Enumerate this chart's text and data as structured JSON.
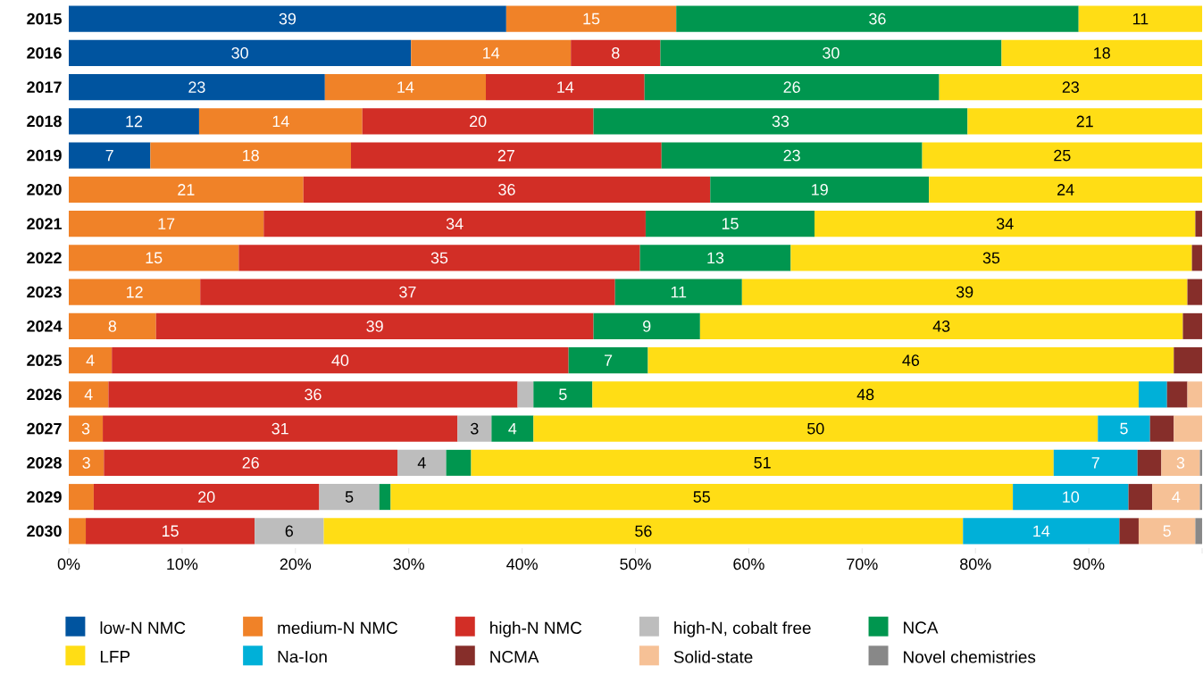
{
  "chart_data": {
    "type": "bar",
    "orientation": "horizontal",
    "stacked": true,
    "categories": [
      "2015",
      "2016",
      "2017",
      "2018",
      "2019",
      "2020",
      "2021",
      "2022",
      "2023",
      "2024",
      "2025",
      "2026",
      "2027",
      "2028",
      "2029",
      "2030"
    ],
    "series": [
      {
        "name": "low-N NMC",
        "color": "#00549f",
        "values": [
          38.6,
          30.2,
          22.6,
          11.5,
          7.2,
          null,
          null,
          null,
          null,
          null,
          null,
          null,
          null,
          null,
          null,
          null
        ],
        "value_labels": [
          "39",
          "30",
          "23",
          "12",
          "7",
          null,
          null,
          null,
          null,
          null,
          null,
          null,
          null,
          null,
          null,
          null
        ]
      },
      {
        "name": "medium-N NMC",
        "color": "#f08228",
        "values": [
          15.0,
          14.1,
          14.2,
          14.4,
          17.7,
          20.7,
          17.2,
          15.0,
          11.6,
          7.7,
          3.8,
          3.5,
          3.0,
          3.1,
          2.2,
          1.5
        ],
        "value_labels": [
          "15",
          "14",
          "14",
          "14",
          "18",
          "21",
          "17",
          "15",
          "12",
          "8",
          "4",
          "4",
          "3",
          "3",
          null,
          null
        ]
      },
      {
        "name": "high-N NMC",
        "color": "#d22e26",
        "values": [
          null,
          7.9,
          14.0,
          20.4,
          27.4,
          35.9,
          33.7,
          35.4,
          36.6,
          38.6,
          40.3,
          36.1,
          31.3,
          25.9,
          19.9,
          14.9
        ],
        "value_labels": [
          null,
          "8",
          "14",
          "20",
          "27",
          "36",
          "34",
          "35",
          "37",
          "39",
          "40",
          "36",
          "31",
          "26",
          "20",
          "15"
        ]
      },
      {
        "name": "high-N, cobalt free",
        "color": "#bdbdbd",
        "values": [
          null,
          null,
          null,
          null,
          null,
          null,
          null,
          null,
          null,
          null,
          null,
          1.4,
          3.0,
          4.3,
          5.3,
          6.1
        ],
        "value_labels": [
          null,
          null,
          null,
          null,
          null,
          null,
          null,
          null,
          null,
          null,
          null,
          null,
          "3",
          "4",
          "5",
          "6"
        ]
      },
      {
        "name": "NCA",
        "color": "#00964f",
        "values": [
          35.5,
          30.1,
          26.0,
          33.0,
          23.0,
          19.3,
          14.9,
          13.3,
          11.2,
          9.4,
          7.0,
          5.2,
          3.7,
          2.2,
          1.0,
          null
        ],
        "value_labels": [
          "36",
          "30",
          "26",
          "33",
          "23",
          "19",
          "15",
          "13",
          "11",
          "9",
          "7",
          "5",
          "4",
          null,
          null,
          null
        ]
      },
      {
        "name": "LFP",
        "color": "#ffdd15",
        "values": [
          10.9,
          17.7,
          23.2,
          20.7,
          24.7,
          24.1,
          33.6,
          35.4,
          39.3,
          42.6,
          46.4,
          48.2,
          49.8,
          51.4,
          54.9,
          56.4
        ],
        "value_labels": [
          "11",
          "18",
          "23",
          "21",
          "25",
          "24",
          "34",
          "35",
          "39",
          "43",
          "46",
          "48",
          "50",
          "51",
          "55",
          "56"
        ]
      },
      {
        "name": "Na-Ion",
        "color": "#00b0d8",
        "values": [
          null,
          null,
          null,
          null,
          null,
          null,
          null,
          null,
          null,
          null,
          null,
          2.5,
          4.6,
          7.4,
          10.2,
          13.8
        ],
        "value_labels": [
          null,
          null,
          null,
          null,
          null,
          null,
          null,
          null,
          null,
          null,
          null,
          null,
          "5",
          "7",
          "10",
          "14"
        ]
      },
      {
        "name": "NCMA",
        "color": "#862e2a",
        "values": [
          null,
          null,
          null,
          null,
          null,
          null,
          0.6,
          0.9,
          1.3,
          1.7,
          2.5,
          1.8,
          2.1,
          2.1,
          2.1,
          1.7
        ],
        "value_labels": [
          null,
          null,
          null,
          null,
          null,
          null,
          null,
          null,
          null,
          null,
          null,
          null,
          null,
          null,
          null,
          null
        ]
      },
      {
        "name": "Solid-state",
        "color": "#f6c196",
        "values": [
          null,
          null,
          null,
          null,
          null,
          null,
          null,
          null,
          null,
          null,
          null,
          1.3,
          2.5,
          3.4,
          4.2,
          5.0
        ],
        "value_labels": [
          null,
          null,
          null,
          null,
          null,
          null,
          null,
          null,
          null,
          null,
          null,
          null,
          null,
          "3",
          "4",
          "5"
        ]
      },
      {
        "name": "Novel chemistries",
        "color": "#888888",
        "values": [
          null,
          null,
          null,
          null,
          null,
          null,
          null,
          null,
          null,
          null,
          null,
          null,
          null,
          0.2,
          0.2,
          0.6
        ],
        "value_labels": [
          null,
          null,
          null,
          null,
          null,
          null,
          null,
          null,
          null,
          null,
          null,
          null,
          null,
          null,
          null,
          null
        ]
      }
    ],
    "xlim": [
      0,
      100
    ],
    "xticks": [
      {
        "value": 0,
        "label": "0%"
      },
      {
        "value": 10,
        "label": "10%"
      },
      {
        "value": 20,
        "label": "20%"
      },
      {
        "value": 30,
        "label": "30%"
      },
      {
        "value": 40,
        "label": "40%"
      },
      {
        "value": 50,
        "label": "50%"
      },
      {
        "value": 60,
        "label": "60%"
      },
      {
        "value": 70,
        "label": "70%"
      },
      {
        "value": 80,
        "label": "80%"
      },
      {
        "value": 90,
        "label": "90%"
      },
      {
        "value": 100,
        "label": null
      }
    ],
    "grid": false,
    "legend": "bottom"
  }
}
